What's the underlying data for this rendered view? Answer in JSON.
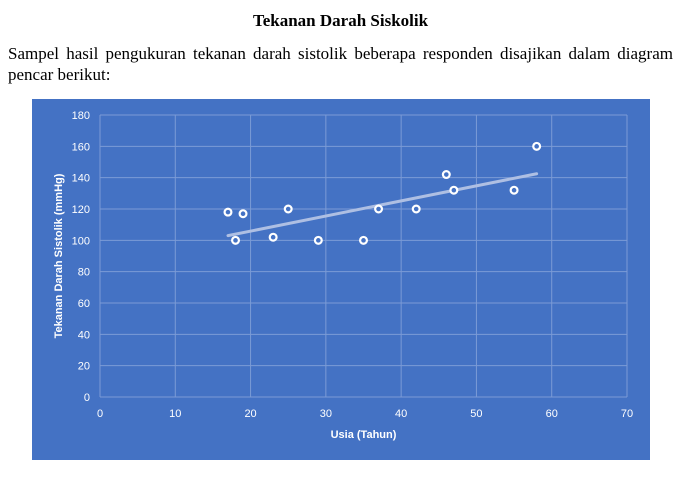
{
  "heading": "Tekanan Darah Siskolik",
  "intro": "Sampel hasil pengukuran tekanan darah sistolik beberapa responden disajikan dalam diagram pencar berikut:",
  "colors": {
    "background": "#4472c4",
    "gridline": "#7b9bd6",
    "marker_fill": "#4472c4",
    "marker_stroke": "#ffffff",
    "trendline": "#aebfe3"
  },
  "chart_data": {
    "type": "scatter",
    "title": "",
    "xlabel": "Usia (Tahun)",
    "ylabel": "Tekanan Darah Sistolik (mmHg)",
    "xlim": [
      0,
      70
    ],
    "ylim": [
      0,
      180
    ],
    "xticks": [
      0,
      10,
      20,
      30,
      40,
      50,
      60,
      70
    ],
    "yticks": [
      0,
      20,
      40,
      60,
      80,
      100,
      120,
      140,
      160,
      180
    ],
    "grid": true,
    "legend": "none",
    "points": [
      {
        "x": 17,
        "y": 118
      },
      {
        "x": 18,
        "y": 100
      },
      {
        "x": 19,
        "y": 117
      },
      {
        "x": 23,
        "y": 102
      },
      {
        "x": 25,
        "y": 120
      },
      {
        "x": 29,
        "y": 100
      },
      {
        "x": 35,
        "y": 100
      },
      {
        "x": 37,
        "y": 120
      },
      {
        "x": 42,
        "y": 120
      },
      {
        "x": 46,
        "y": 142
      },
      {
        "x": 47,
        "y": 132
      },
      {
        "x": 55,
        "y": 132
      },
      {
        "x": 58,
        "y": 160
      }
    ],
    "trendline": {
      "type": "linear",
      "x": [
        17,
        58
      ],
      "y": [
        103,
        142.5
      ]
    }
  }
}
